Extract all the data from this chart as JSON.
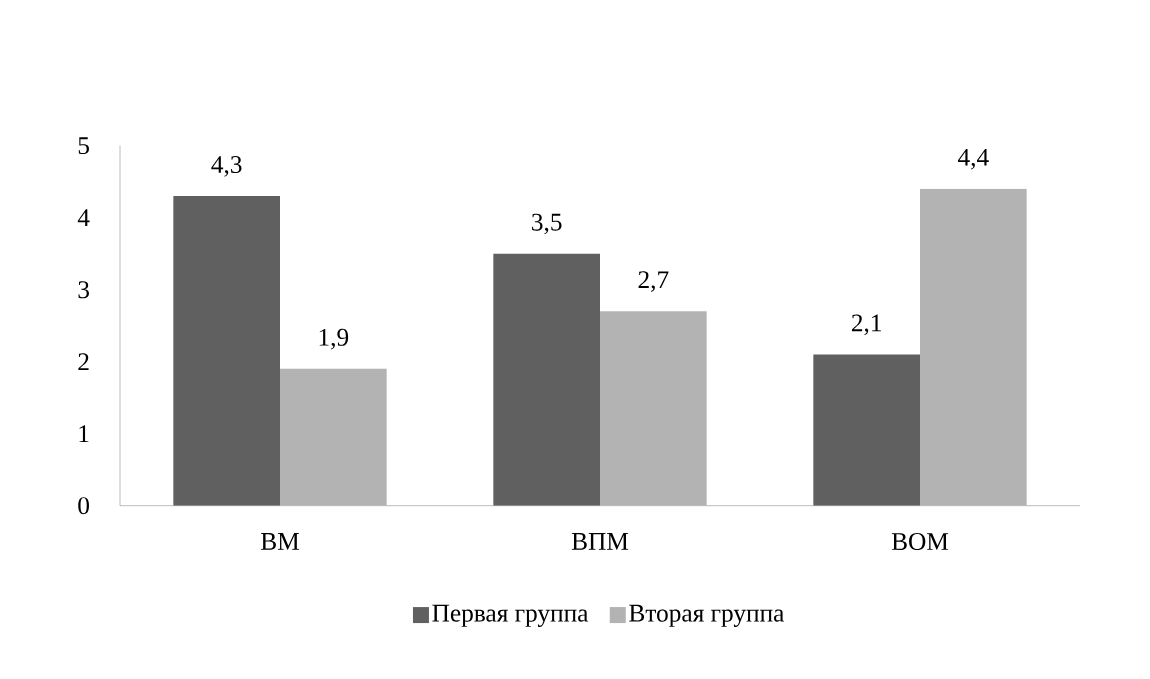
{
  "chart_data": {
    "type": "bar",
    "categories": [
      "ВМ",
      "ВПМ",
      "ВОМ"
    ],
    "series": [
      {
        "name": "Первая группа",
        "color": "#606060",
        "values": [
          4.3,
          3.5,
          2.1
        ],
        "value_labels": [
          "4,3",
          "3,5",
          "2,1"
        ]
      },
      {
        "name": "Вторая группа",
        "color": "#b3b3b3",
        "values": [
          1.9,
          2.7,
          4.4
        ],
        "value_labels": [
          "1,9",
          "2,7",
          "4,4"
        ]
      }
    ],
    "ylim": [
      0,
      5
    ],
    "yticks": [
      0,
      1,
      2,
      3,
      4,
      5
    ],
    "grid": false,
    "legend": "bottom"
  }
}
